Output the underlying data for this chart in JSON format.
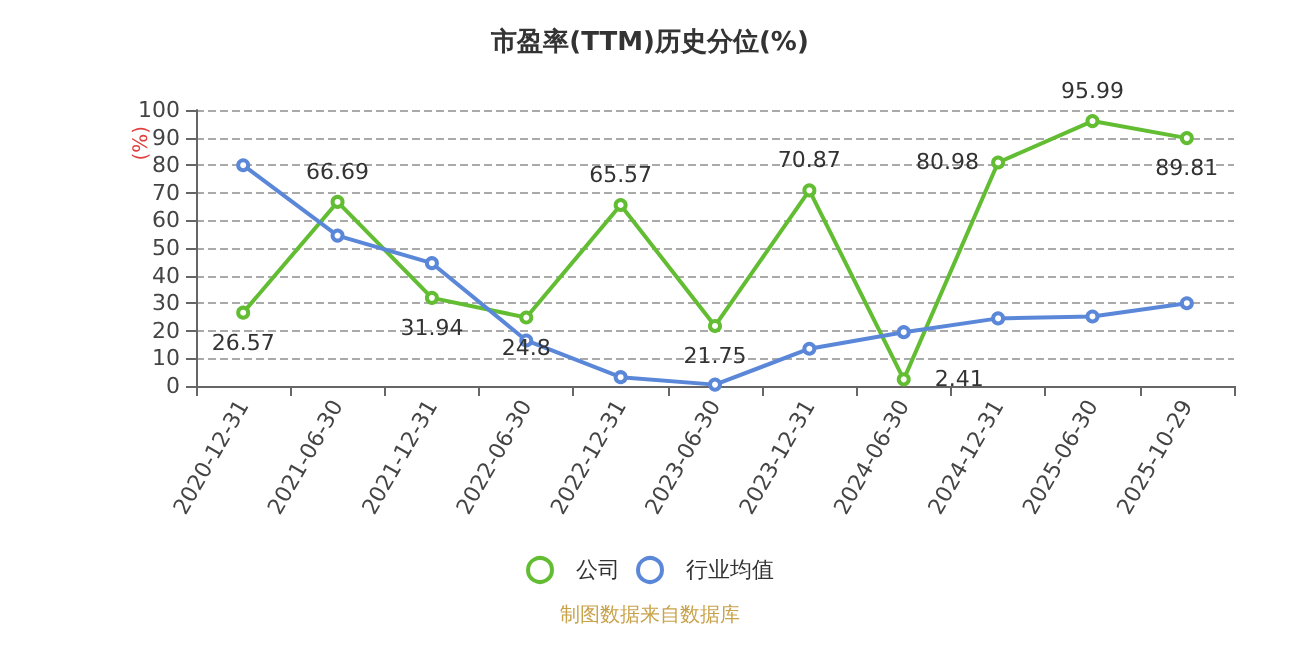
{
  "chart_data": {
    "type": "line",
    "title": "市盈率(TTM)历史分位(%)",
    "ylabel": "(%)",
    "categories": [
      "2020-12-31",
      "2021-06-30",
      "2021-12-31",
      "2022-06-30",
      "2022-12-31",
      "2023-06-30",
      "2023-12-31",
      "2024-06-30",
      "2024-12-31",
      "2025-06-30",
      "2025-10-29"
    ],
    "series": [
      {
        "name": "公司",
        "color": "#62bd33",
        "values": [
          26.57,
          66.69,
          31.94,
          24.8,
          65.57,
          21.75,
          70.87,
          2.41,
          80.98,
          95.99,
          89.81
        ],
        "value_labels": [
          "26.57",
          "66.69",
          "31.94",
          "24.8",
          "65.57",
          "21.75",
          "70.87",
          "2.41",
          "80.98",
          "95.99",
          "89.81"
        ]
      },
      {
        "name": "行业均值",
        "color": "#5b87d9",
        "values": [
          80,
          54.5,
          44.5,
          16.5,
          3.2,
          0.5,
          13.5,
          19.5,
          24.5,
          25.2,
          30
        ]
      }
    ],
    "ylim": [
      0,
      100
    ],
    "yticks": [
      0,
      10,
      20,
      30,
      40,
      50,
      60,
      70,
      80,
      90,
      100
    ],
    "grid": "y",
    "legend": "bottom",
    "marker": "circle",
    "line_style": "solid",
    "annotations": [
      "制图数据来自数据库"
    ]
  }
}
